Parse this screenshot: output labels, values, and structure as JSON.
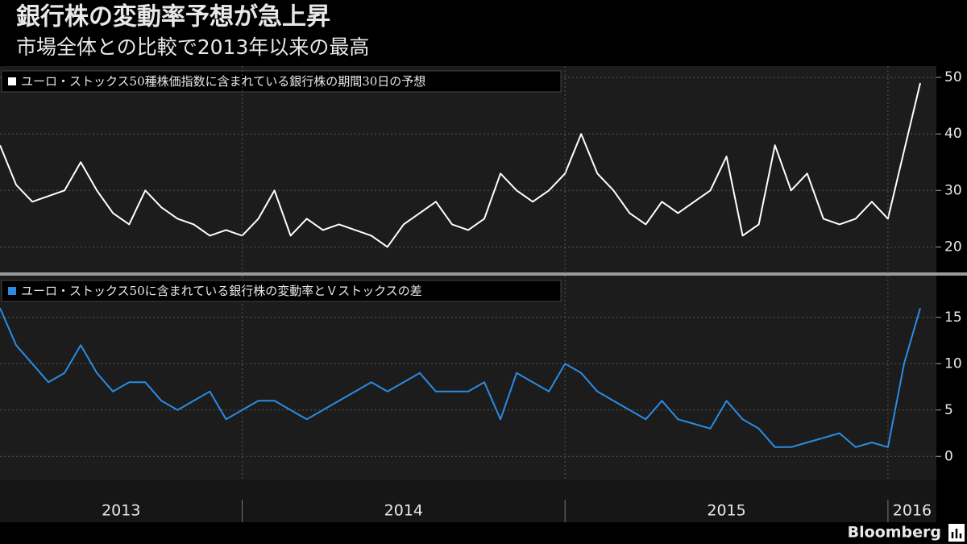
{
  "title": "銀行株の変動率予想が急上昇",
  "subtitle": "市場全体との比較で2013年以来の最高",
  "source": "Bloomberg",
  "chart_data": [
    {
      "type": "line",
      "x": [
        2013.25,
        2013.3,
        2013.35,
        2013.4,
        2013.45,
        2013.5,
        2013.55,
        2013.6,
        2013.65,
        2013.7,
        2013.75,
        2013.8,
        2013.85,
        2013.9,
        2013.95,
        2014.0,
        2014.05,
        2014.1,
        2014.15,
        2014.2,
        2014.25,
        2014.3,
        2014.35,
        2014.4,
        2014.45,
        2014.5,
        2014.55,
        2014.6,
        2014.65,
        2014.7,
        2014.75,
        2014.8,
        2014.85,
        2014.9,
        2014.95,
        2015.0,
        2015.05,
        2015.1,
        2015.15,
        2015.2,
        2015.25,
        2015.3,
        2015.35,
        2015.4,
        2015.45,
        2015.5,
        2015.55,
        2015.6,
        2015.65,
        2015.7,
        2015.75,
        2015.8,
        2015.85,
        2015.9,
        2015.95,
        2016.0,
        2016.05,
        2016.1
      ],
      "series": [
        {
          "name": "ユーロ・ストックス50種株価指数に含まれている銀行株の期間30日の予想",
          "color": "#ffffff",
          "values": [
            38,
            31,
            28,
            29,
            30,
            35,
            30,
            26,
            24,
            30,
            27,
            25,
            24,
            22,
            23,
            22,
            25,
            30,
            22,
            25,
            23,
            24,
            23,
            22,
            20,
            24,
            26,
            28,
            24,
            23,
            25,
            33,
            30,
            28,
            30,
            33,
            40,
            33,
            30,
            26,
            24,
            28,
            26,
            28,
            30,
            36,
            22,
            24,
            38,
            30,
            33,
            25,
            24,
            25,
            28,
            25,
            37,
            49
          ]
        }
      ],
      "xlim": [
        2013.25,
        2016.15
      ],
      "ylim": [
        15.5,
        52
      ],
      "yticks": [
        20,
        30,
        40,
        50
      ],
      "grid": true
    },
    {
      "type": "line",
      "x": [
        2013.25,
        2013.3,
        2013.35,
        2013.4,
        2013.45,
        2013.5,
        2013.55,
        2013.6,
        2013.65,
        2013.7,
        2013.75,
        2013.8,
        2013.85,
        2013.9,
        2013.95,
        2014.0,
        2014.05,
        2014.1,
        2014.15,
        2014.2,
        2014.25,
        2014.3,
        2014.35,
        2014.4,
        2014.45,
        2014.5,
        2014.55,
        2014.6,
        2014.65,
        2014.7,
        2014.75,
        2014.8,
        2014.85,
        2014.9,
        2014.95,
        2015.0,
        2015.05,
        2015.1,
        2015.15,
        2015.2,
        2015.25,
        2015.3,
        2015.35,
        2015.4,
        2015.45,
        2015.5,
        2015.55,
        2015.6,
        2015.65,
        2015.7,
        2015.75,
        2015.8,
        2015.85,
        2015.9,
        2015.95,
        2016.0,
        2016.05,
        2016.1
      ],
      "series": [
        {
          "name": "ユーロ・ストックス50に含まれている銀行株の変動率とＶストックスの差",
          "color": "#2b8be3",
          "values": [
            16,
            12,
            10,
            8,
            9,
            12,
            9,
            7,
            8,
            8,
            6,
            5,
            6,
            7,
            4,
            5,
            6,
            6,
            5,
            4,
            5,
            6,
            7,
            8,
            7,
            8,
            9,
            7,
            7,
            7,
            8,
            4,
            9,
            8,
            7,
            10,
            9,
            7,
            6,
            5,
            4,
            6,
            4,
            3.5,
            3,
            6,
            4,
            3,
            1,
            1,
            1.5,
            2,
            2.5,
            1,
            1.5,
            1,
            10,
            16
          ]
        }
      ],
      "xlim": [
        2013.25,
        2016.15
      ],
      "xticks": [
        2013,
        2014,
        2015,
        2016
      ],
      "ylim": [
        -2.5,
        19.5
      ],
      "yticks": [
        0,
        5,
        10,
        15
      ],
      "grid": true
    }
  ]
}
